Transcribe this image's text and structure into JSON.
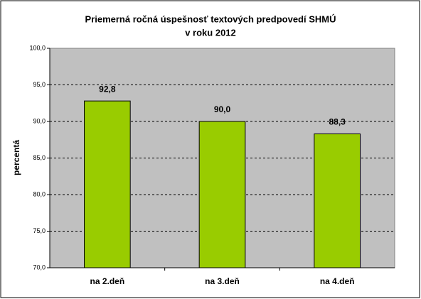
{
  "chart_data": {
    "type": "bar",
    "title": [
      "Priemerná ročná úspešnosť textových predpovedí SHMÚ",
      "v roku 2012"
    ],
    "y_label": "percentá",
    "categories": [
      "na 2.deň",
      "na 3.deň",
      "na 4.deň"
    ],
    "values": [
      92.8,
      90.0,
      88.3
    ],
    "value_labels": [
      "92,8",
      "90,0",
      "88,3"
    ],
    "color": "#99cc00",
    "ylim": [
      70,
      100
    ],
    "yticks": [
      {
        "value": 70,
        "label": "70,0"
      },
      {
        "value": 75,
        "label": "75,0"
      },
      {
        "value": 80,
        "label": "80,0"
      },
      {
        "value": 85,
        "label": "85,0"
      },
      {
        "value": 90,
        "label": "90,0"
      },
      {
        "value": 95,
        "label": "95,0"
      },
      {
        "value": 100,
        "label": "100,0"
      }
    ],
    "grid": true
  }
}
